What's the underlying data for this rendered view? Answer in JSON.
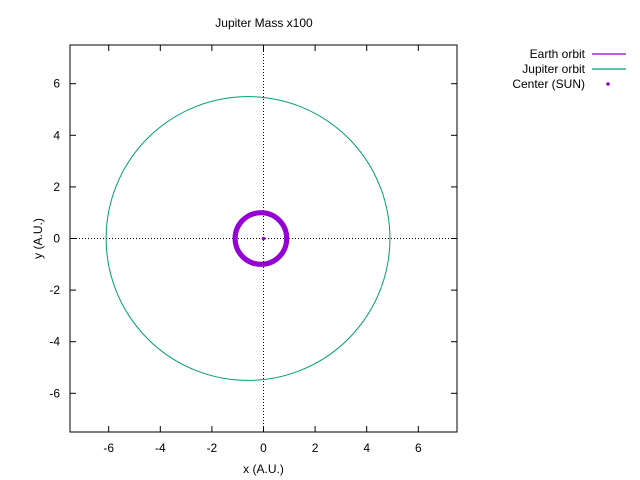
{
  "chart_data": {
    "type": "line",
    "title": "Jupiter Mass x100",
    "xlabel": "x (A.U.)",
    "ylabel": "y (A.U.)",
    "xlim": [
      -7.5,
      7.5
    ],
    "ylim": [
      -7.5,
      7.5
    ],
    "xticks": [
      -6,
      -4,
      -2,
      0,
      2,
      4,
      6
    ],
    "yticks": [
      -6,
      -4,
      -2,
      0,
      2,
      4,
      6
    ],
    "xtick_labels": [
      "-6",
      "-4",
      "-2",
      "0",
      "2",
      "4",
      "6"
    ],
    "ytick_labels": [
      "-6",
      "-4",
      "-2",
      "0",
      "2",
      "4",
      "6"
    ],
    "zero_axes_dotted": true,
    "legend_position": "top-right outside",
    "series": [
      {
        "name": "Earth orbit",
        "kind": "line",
        "color": "#9400d3",
        "center": [
          -0.1,
          0.0
        ],
        "radius_x": 1.0,
        "radius_y": 1.0,
        "thickness_band": 0.2
      },
      {
        "name": "Jupiter orbit",
        "kind": "line",
        "color": "#009e73",
        "center": [
          -0.6,
          0.0
        ],
        "radius_x": 5.5,
        "radius_y": 5.5
      },
      {
        "name": "Center (SUN)",
        "kind": "point",
        "color": "#9400d3",
        "x": 0.0,
        "y": 0.0
      }
    ]
  }
}
